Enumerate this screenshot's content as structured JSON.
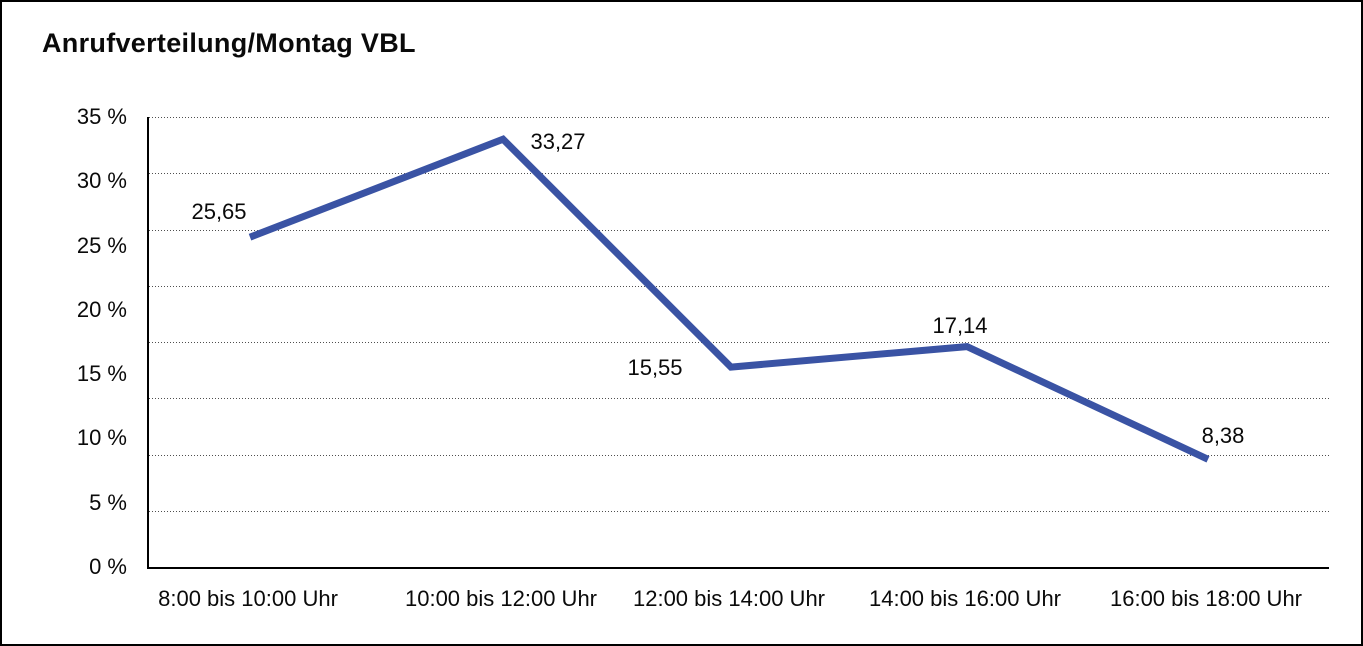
{
  "title": "Anrufverteilung/Montag VBL",
  "chart_data": {
    "type": "line",
    "title": "Anrufverteilung/Montag VBL",
    "categories": [
      "8:00 bis 10:00 Uhr",
      "10:00 bis 12:00 Uhr",
      "12:00 bis 14:00 Uhr",
      "14:00 bis 16:00 Uhr",
      "16:00 bis 18:00 Uhr"
    ],
    "values": [
      25.65,
      33.27,
      15.55,
      17.14,
      8.38
    ],
    "point_labels": [
      "25,65",
      "33,27",
      "15,55",
      "17,14",
      "8,38"
    ],
    "point_label_positions": [
      "above-left",
      "right",
      "left",
      "above",
      "above-right"
    ],
    "y_ticks": [
      {
        "value": 35,
        "label": "35 %"
      },
      {
        "value": 30,
        "label": "30 %"
      },
      {
        "value": 25,
        "label": "25 %"
      },
      {
        "value": 20,
        "label": "20 %"
      },
      {
        "value": 15,
        "label": "15 %"
      },
      {
        "value": 10,
        "label": "10 %"
      },
      {
        "value": 5,
        "label": "5 %"
      },
      {
        "value": 0,
        "label": "0 %"
      }
    ],
    "ylim": [
      0,
      35
    ],
    "xlabel": "",
    "ylabel": "",
    "legend": "none",
    "grid": "horizontal-dotted",
    "grid_divisions": 8,
    "colors": {
      "line": "#3A53A4",
      "grid": "#4F4F4F",
      "axis": "#000000",
      "text": "#0A0A0A",
      "background": "#FFFFFF",
      "frame_border": "#000000"
    }
  }
}
